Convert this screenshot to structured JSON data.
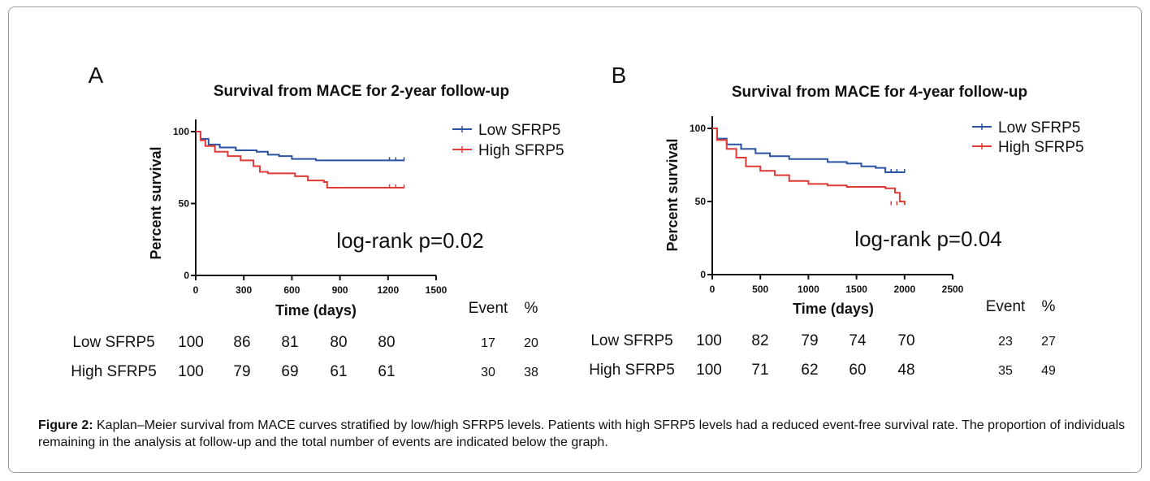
{
  "panels": [
    {
      "letter": "A",
      "chart_data": {
        "type": "line",
        "title": "Survival from MACE for 2-year follow-up",
        "xlabel": "Time (days)",
        "ylabel": "Percent survival",
        "xlim": [
          0,
          1500
        ],
        "ylim": [
          0,
          100
        ],
        "xticks": [
          0,
          300,
          600,
          900,
          1200,
          1500
        ],
        "yticks": [
          0,
          50,
          100
        ],
        "legend_position": "top-right",
        "annotation": "log-rank p=0.02",
        "series": [
          {
            "name": "Low SFRP5",
            "color": "#2a52a2",
            "x": [
              0,
              30,
              80,
              150,
              250,
              380,
              450,
              520,
              600,
              750,
              900,
              1050,
              1200,
              1300
            ],
            "y": [
              100,
              95,
              91,
              89,
              87,
              86,
              84,
              83,
              81,
              80,
              80,
              80,
              80,
              80
            ]
          },
          {
            "name": "High SFRP5",
            "color": "#e03a36",
            "x": [
              0,
              30,
              60,
              120,
              200,
              280,
              360,
              400,
              450,
              550,
              620,
              700,
              800,
              820,
              1000,
              1200,
              1300
            ],
            "y": [
              100,
              94,
              90,
              86,
              83,
              80,
              76,
              72,
              71,
              71,
              69,
              66,
              65,
              61,
              61,
              61,
              61
            ]
          }
        ]
      },
      "table": {
        "headers": [
          "Event",
          "%"
        ],
        "rows": [
          {
            "label": "Low SFRP5",
            "values": [
              "100",
              "86",
              "81",
              "80",
              "80"
            ],
            "event": "17",
            "pct": "20"
          },
          {
            "label": "High SFRP5",
            "values": [
              "100",
              "79",
              "69",
              "61",
              "61"
            ],
            "event": "30",
            "pct": "38"
          }
        ]
      }
    },
    {
      "letter": "B",
      "chart_data": {
        "type": "line",
        "title": "Survival from MACE for 4-year follow-up",
        "xlabel": "Time (days)",
        "ylabel": "Percent survival",
        "xlim": [
          0,
          2500
        ],
        "ylim": [
          0,
          100
        ],
        "xticks": [
          0,
          500,
          1000,
          1500,
          2000,
          2500
        ],
        "yticks": [
          0,
          50,
          100
        ],
        "legend_position": "top-right",
        "annotation": "log-rank p=0.04",
        "series": [
          {
            "name": "Low SFRP5",
            "color": "#2a52a2",
            "x": [
              0,
              50,
              150,
              300,
              450,
              600,
              800,
              1000,
              1200,
              1400,
              1550,
              1700,
              1800,
              2000
            ],
            "y": [
              100,
              93,
              89,
              86,
              83,
              81,
              79,
              79,
              77,
              76,
              74,
              73,
              70,
              70
            ]
          },
          {
            "name": "High SFRP5",
            "color": "#e03a36",
            "x": [
              0,
              50,
              150,
              250,
              350,
              500,
              650,
              800,
              1000,
              1200,
              1400,
              1600,
              1800,
              1900,
              1950,
              2000
            ],
            "y": [
              100,
              92,
              86,
              80,
              74,
              71,
              68,
              64,
              62,
              61,
              60,
              60,
              59,
              56,
              50,
              48
            ]
          }
        ]
      },
      "table": {
        "headers": [
          "Event",
          "%"
        ],
        "rows": [
          {
            "label": "Low SFRP5",
            "values": [
              "100",
              "82",
              "79",
              "74",
              "70"
            ],
            "event": "23",
            "pct": "27"
          },
          {
            "label": "High SFRP5",
            "values": [
              "100",
              "71",
              "62",
              "60",
              "48"
            ],
            "event": "35",
            "pct": "49"
          }
        ]
      }
    }
  ],
  "caption": {
    "label": "Figure 2:",
    "text": " Kaplan–Meier survival from MACE curves stratified by low/high SFRP5 levels. Patients with high SFRP5 levels had a reduced event-free survival rate. The proportion of individuals remaining in the analysis at follow-up and the total number of events are indicated below the graph."
  }
}
